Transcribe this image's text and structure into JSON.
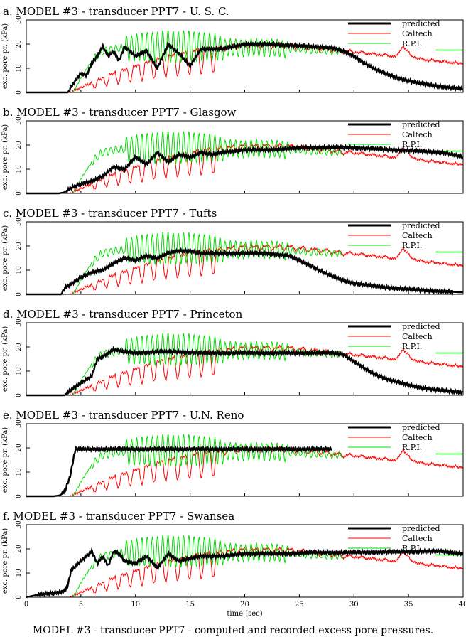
{
  "caption": "MODEL #3 - transducer PPT7 - computed and recorded excess pore pressures.",
  "chart_data": [
    {
      "type": "line",
      "title": "a. MODEL #3 - transducer PPT7 - U. S. C.",
      "xlabel": "",
      "ylabel": "exc. pore pr. (kPa)",
      "xlim": [
        0,
        40
      ],
      "ylim": [
        0,
        30
      ],
      "yticks": [
        "0",
        "10",
        "20",
        "30"
      ],
      "xticks": [],
      "legend_position": "top-right",
      "series": [
        {
          "name": "predicted",
          "color": "#000000",
          "x": [
            0,
            3.8,
            4.2,
            5,
            5.5,
            6,
            6.5,
            7,
            7.5,
            8,
            8.5,
            9,
            10,
            11,
            12,
            13,
            14,
            15,
            16,
            18,
            20,
            22,
            24,
            26,
            28,
            29,
            30,
            31,
            32,
            33,
            34,
            35,
            36,
            37,
            38,
            39,
            40
          ],
          "y": [
            0,
            0,
            3,
            8,
            7,
            12,
            15,
            19,
            15,
            17,
            13,
            19,
            15,
            17,
            10,
            20,
            16,
            11,
            18,
            18,
            20,
            20,
            19.5,
            19,
            18.5,
            17,
            15,
            12,
            9.5,
            7.5,
            6,
            4.8,
            3.8,
            3,
            2.4,
            1.9,
            1.5
          ]
        }
      ]
    },
    {
      "type": "line",
      "title": "b. MODEL #3 - transducer PPT7 - Glasgow",
      "xlabel": "",
      "ylabel": "exc. pore pr. (kPa)",
      "xlim": [
        0,
        40
      ],
      "ylim": [
        0,
        30
      ],
      "yticks": [
        "0",
        "10",
        "20",
        "30"
      ],
      "xticks": [],
      "legend_position": "top-right",
      "series": [
        {
          "name": "predicted",
          "color": "#000000",
          "x": [
            0,
            3,
            3.5,
            4,
            5,
            6,
            7,
            8,
            9,
            10,
            11,
            12,
            13,
            14,
            15,
            16,
            17,
            18,
            20,
            22,
            24,
            26,
            28,
            29.5,
            38,
            39,
            40
          ],
          "y": [
            0,
            0,
            0.5,
            2,
            4,
            5,
            7,
            11,
            10,
            15,
            12,
            17,
            13,
            16,
            15,
            17,
            16,
            17,
            18,
            18,
            18.5,
            19,
            19,
            19,
            17,
            16,
            15
          ]
        }
      ]
    },
    {
      "type": "line",
      "title": "c. MODEL #3 - transducer PPT7 - Tufts",
      "xlabel": "",
      "ylabel": "exc. pore pr. (kPa)",
      "xlim": [
        0,
        40
      ],
      "ylim": [
        0,
        30
      ],
      "yticks": [
        "0",
        "10",
        "20",
        "30"
      ],
      "xticks": [],
      "legend_position": "top-right",
      "series": [
        {
          "name": "predicted",
          "color": "#000000",
          "x": [
            0,
            3.2,
            3.6,
            4,
            5,
            6,
            7,
            8,
            9,
            10,
            11,
            12,
            13,
            14,
            15,
            16,
            18,
            20,
            22,
            24,
            25,
            26,
            27,
            28,
            29,
            30,
            32,
            34,
            36,
            38,
            40
          ],
          "y": [
            0,
            0,
            3,
            4,
            7,
            9,
            10,
            13,
            15,
            14,
            16,
            15,
            17,
            18,
            18,
            17,
            17,
            17,
            17,
            16,
            14,
            12,
            9.5,
            7.5,
            5.8,
            4.6,
            3.3,
            2.4,
            1.8,
            1.2,
            0.8
          ]
        }
      ]
    },
    {
      "type": "line",
      "title": "d. MODEL #3 - transducer PPT7 - Princeton",
      "xlabel": "",
      "ylabel": "exc. pore pr. (kPa)",
      "xlim": [
        0,
        40
      ],
      "ylim": [
        0,
        30
      ],
      "yticks": [
        "0",
        "10",
        "20",
        "30"
      ],
      "xticks": [],
      "legend_position": "top-right",
      "series": [
        {
          "name": "predicted",
          "color": "#000000",
          "x": [
            0,
            3.5,
            4,
            5,
            6,
            6.5,
            7,
            8,
            9,
            10,
            12,
            14,
            16,
            18,
            20,
            22,
            24,
            26,
            28,
            29,
            30,
            31,
            32,
            33,
            34,
            35,
            36,
            37,
            38,
            39,
            40
          ],
          "y": [
            0,
            0,
            2,
            5,
            8,
            15,
            16,
            19,
            18,
            17.5,
            18,
            18,
            17.5,
            17.5,
            17.5,
            17.5,
            17.5,
            17.5,
            17.5,
            17,
            14,
            11,
            8.5,
            6.8,
            5.4,
            4.2,
            3.3,
            2.6,
            2,
            1.5,
            1.2
          ]
        }
      ]
    },
    {
      "type": "line",
      "title": "e. MODEL #3 - transducer PPT7 - U.N. Reno",
      "xlabel": "",
      "ylabel": "exc. pore pr. (kPa)",
      "xlim": [
        0,
        40
      ],
      "ylim": [
        0,
        30
      ],
      "yticks": [
        "0",
        "10",
        "20",
        "30"
      ],
      "xticks": [],
      "legend_position": "top-right",
      "series": [
        {
          "name": "predicted",
          "color": "#000000",
          "x": [
            0,
            2.5,
            3,
            3.3,
            3.6,
            4,
            4.3,
            4.5,
            5,
            10,
            15,
            20,
            25,
            27,
            28
          ],
          "y": [
            0,
            0,
            0.3,
            1,
            3,
            8,
            15,
            19.5,
            19.5,
            19.5,
            19.5,
            19.5,
            19.5,
            19.5,
            19.5
          ]
        }
      ]
    },
    {
      "type": "line",
      "title": "f. MODEL #3 - transducer PPT7 - Swansea",
      "xlabel": "time (sec)",
      "ylabel": "exc. pore pr. (kPa)",
      "xlim": [
        0,
        40
      ],
      "ylim": [
        0,
        30
      ],
      "yticks": [
        "0",
        "10",
        "20",
        "30"
      ],
      "xticks": [
        "0",
        "5",
        "10",
        "15",
        "20",
        "25",
        "30",
        "35",
        "40"
      ],
      "legend_position": "top-right",
      "series": [
        {
          "name": "predicted",
          "color": "#000000",
          "x": [
            0,
            1,
            2,
            3,
            3.5,
            3.8,
            4.1,
            5,
            6,
            6.5,
            7,
            7.5,
            8,
            8.5,
            9,
            10,
            11,
            12,
            13,
            14,
            15,
            16,
            18,
            20,
            22,
            24,
            26,
            28,
            29.3,
            38,
            39,
            40
          ],
          "y": [
            0,
            1,
            1.5,
            2,
            2.5,
            5,
            11,
            15,
            19,
            14,
            17,
            13,
            19,
            18,
            15,
            14,
            17,
            12,
            18,
            15,
            16,
            17,
            17,
            18,
            18,
            18,
            18.5,
            18.5,
            18.5,
            19,
            18.5,
            18
          ]
        }
      ]
    }
  ],
  "legend_labels": [
    "predicted",
    "Caltech",
    "R.P.I."
  ],
  "recorded_series": [
    {
      "name": "Caltech",
      "color": "#ff0000",
      "x_range": [
        0,
        40
      ],
      "envelope_x": [
        0,
        4,
        5,
        6,
        8,
        10,
        12,
        14,
        16,
        18,
        20,
        22,
        24,
        26,
        28,
        30,
        32,
        34,
        35,
        36,
        38,
        40
      ],
      "envelope_y": [
        0,
        0,
        2,
        4,
        8,
        11,
        14,
        16,
        18,
        19,
        20,
        20,
        20,
        19,
        18,
        17,
        16,
        15,
        16,
        14,
        13,
        12
      ]
    },
    {
      "name": "R.P.I.",
      "color": "#00dd00",
      "x_range": [
        0,
        29
      ],
      "extra_x_range": [
        37.5,
        40
      ],
      "envelope_x": [
        0,
        4.3,
        5,
        6,
        7,
        8,
        10,
        12,
        14,
        15,
        16,
        18,
        20,
        22,
        24,
        26,
        28,
        29,
        37.5,
        40
      ],
      "envelope_y": [
        0,
        0,
        6,
        13,
        17,
        18,
        18.5,
        19,
        19,
        19,
        19,
        18.5,
        18.5,
        18.5,
        18,
        17.5,
        17,
        17,
        17.5,
        17.5
      ]
    }
  ]
}
